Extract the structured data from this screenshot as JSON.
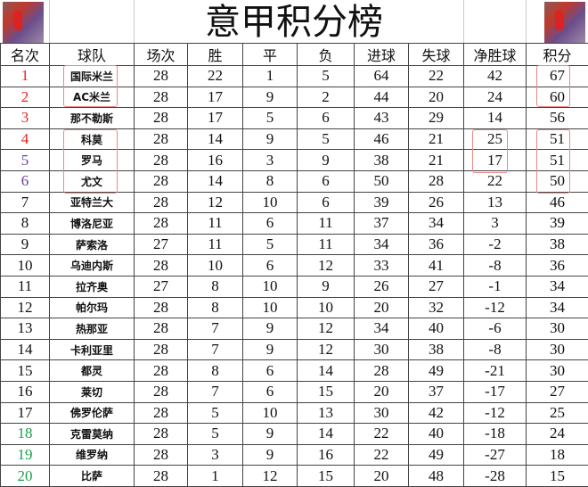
{
  "title": "意甲积分榜",
  "headers": [
    "名次",
    "球队",
    "场次",
    "胜",
    "平",
    "负",
    "进球",
    "失球",
    "净胜球",
    "积分"
  ],
  "rank_colors": {
    "1": "#e8201f",
    "2": "#e8201f",
    "3": "#e8201f",
    "4": "#e8201f",
    "5": "#6b3fa0",
    "6": "#6b3fa0",
    "18": "#1aa04a",
    "19": "#1aa04a",
    "20": "#1aa04a"
  },
  "rows": [
    [
      "1",
      "国际米兰",
      "28",
      "22",
      "1",
      "5",
      "64",
      "22",
      "42",
      "67"
    ],
    [
      "2",
      "AC米兰",
      "28",
      "17",
      "9",
      "2",
      "44",
      "20",
      "24",
      "60"
    ],
    [
      "3",
      "那不勒斯",
      "28",
      "17",
      "5",
      "6",
      "43",
      "29",
      "14",
      "56"
    ],
    [
      "4",
      "科莫",
      "28",
      "14",
      "9",
      "5",
      "46",
      "21",
      "25",
      "51"
    ],
    [
      "5",
      "罗马",
      "28",
      "16",
      "3",
      "9",
      "38",
      "21",
      "17",
      "51"
    ],
    [
      "6",
      "尤文",
      "28",
      "14",
      "8",
      "6",
      "50",
      "28",
      "22",
      "50"
    ],
    [
      "7",
      "亚特兰大",
      "28",
      "12",
      "10",
      "6",
      "39",
      "26",
      "13",
      "46"
    ],
    [
      "8",
      "博洛尼亚",
      "28",
      "11",
      "6",
      "11",
      "37",
      "34",
      "3",
      "39"
    ],
    [
      "9",
      "萨索洛",
      "27",
      "11",
      "5",
      "11",
      "34",
      "36",
      "-2",
      "38"
    ],
    [
      "10",
      "乌迪内斯",
      "28",
      "10",
      "6",
      "12",
      "33",
      "41",
      "-8",
      "36"
    ],
    [
      "11",
      "拉齐奥",
      "27",
      "8",
      "10",
      "9",
      "26",
      "27",
      "-1",
      "34"
    ],
    [
      "12",
      "帕尔玛",
      "28",
      "8",
      "10",
      "10",
      "20",
      "32",
      "-12",
      "34"
    ],
    [
      "13",
      "热那亚",
      "28",
      "7",
      "9",
      "12",
      "34",
      "40",
      "-6",
      "30"
    ],
    [
      "14",
      "卡利亚里",
      "28",
      "7",
      "9",
      "12",
      "30",
      "38",
      "-8",
      "30"
    ],
    [
      "15",
      "都灵",
      "28",
      "8",
      "6",
      "14",
      "28",
      "49",
      "-21",
      "30"
    ],
    [
      "16",
      "莱切",
      "28",
      "7",
      "6",
      "15",
      "20",
      "37",
      "-17",
      "27"
    ],
    [
      "17",
      "佛罗伦萨",
      "28",
      "5",
      "10",
      "13",
      "30",
      "42",
      "-12",
      "25"
    ],
    [
      "18",
      "克雷莫纳",
      "28",
      "5",
      "9",
      "14",
      "22",
      "40",
      "-18",
      "24"
    ],
    [
      "19",
      "维罗纳",
      "28",
      "3",
      "9",
      "16",
      "22",
      "49",
      "-27",
      "18"
    ],
    [
      "20",
      "比萨",
      "28",
      "1",
      "12",
      "15",
      "20",
      "48",
      "-28",
      "15"
    ]
  ]
}
